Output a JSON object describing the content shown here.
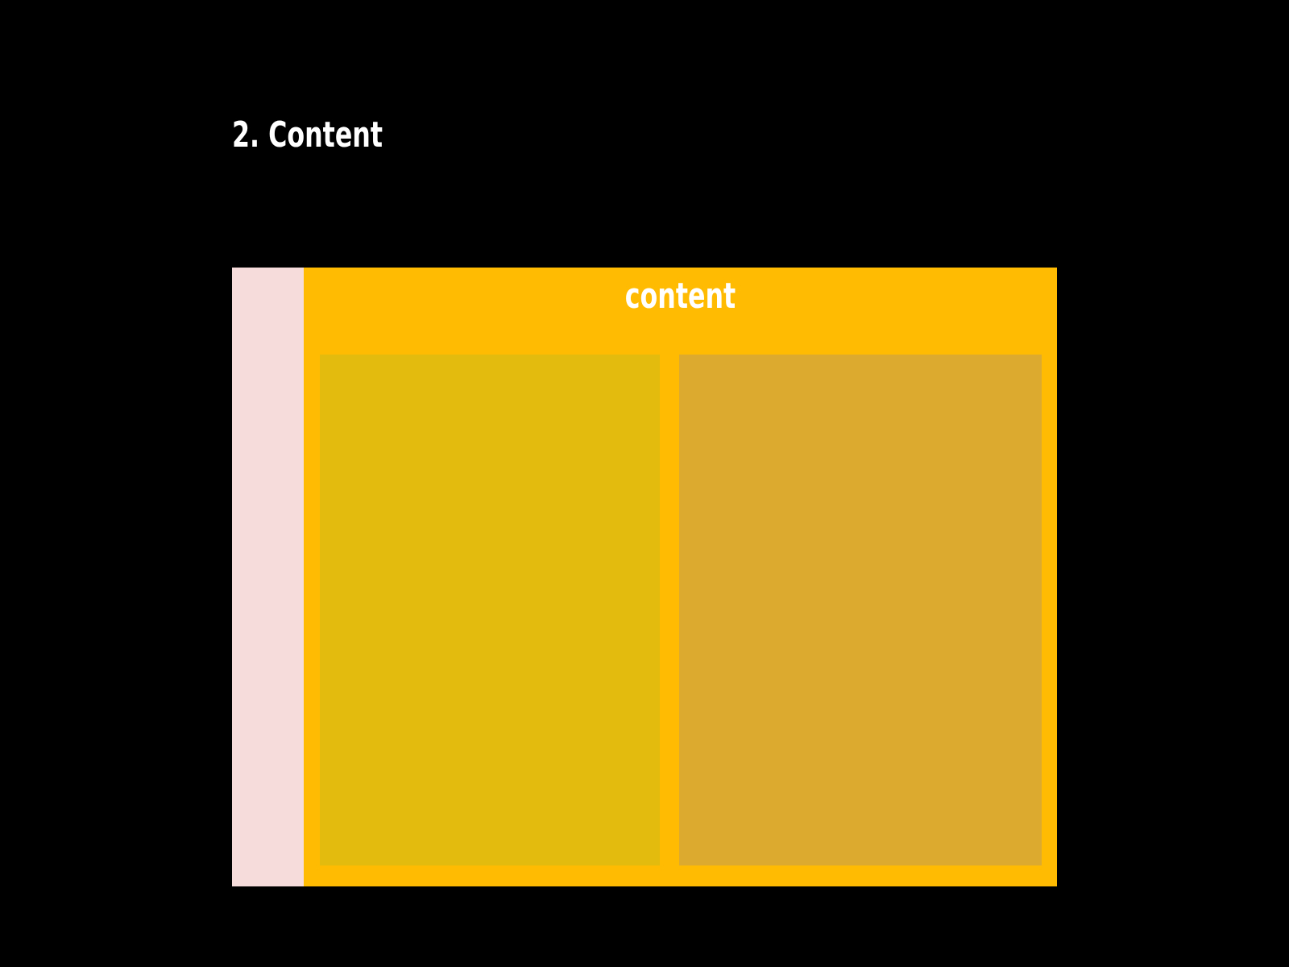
{
  "slide": {
    "title": "2. Content"
  },
  "diagram": {
    "content_label": "content",
    "colors": {
      "background": "#000000",
      "sidebar": "#f7dcdc",
      "content": "#ffba02",
      "panel_left": "#e2bb0e",
      "panel_right": "#dbaa2f"
    }
  }
}
